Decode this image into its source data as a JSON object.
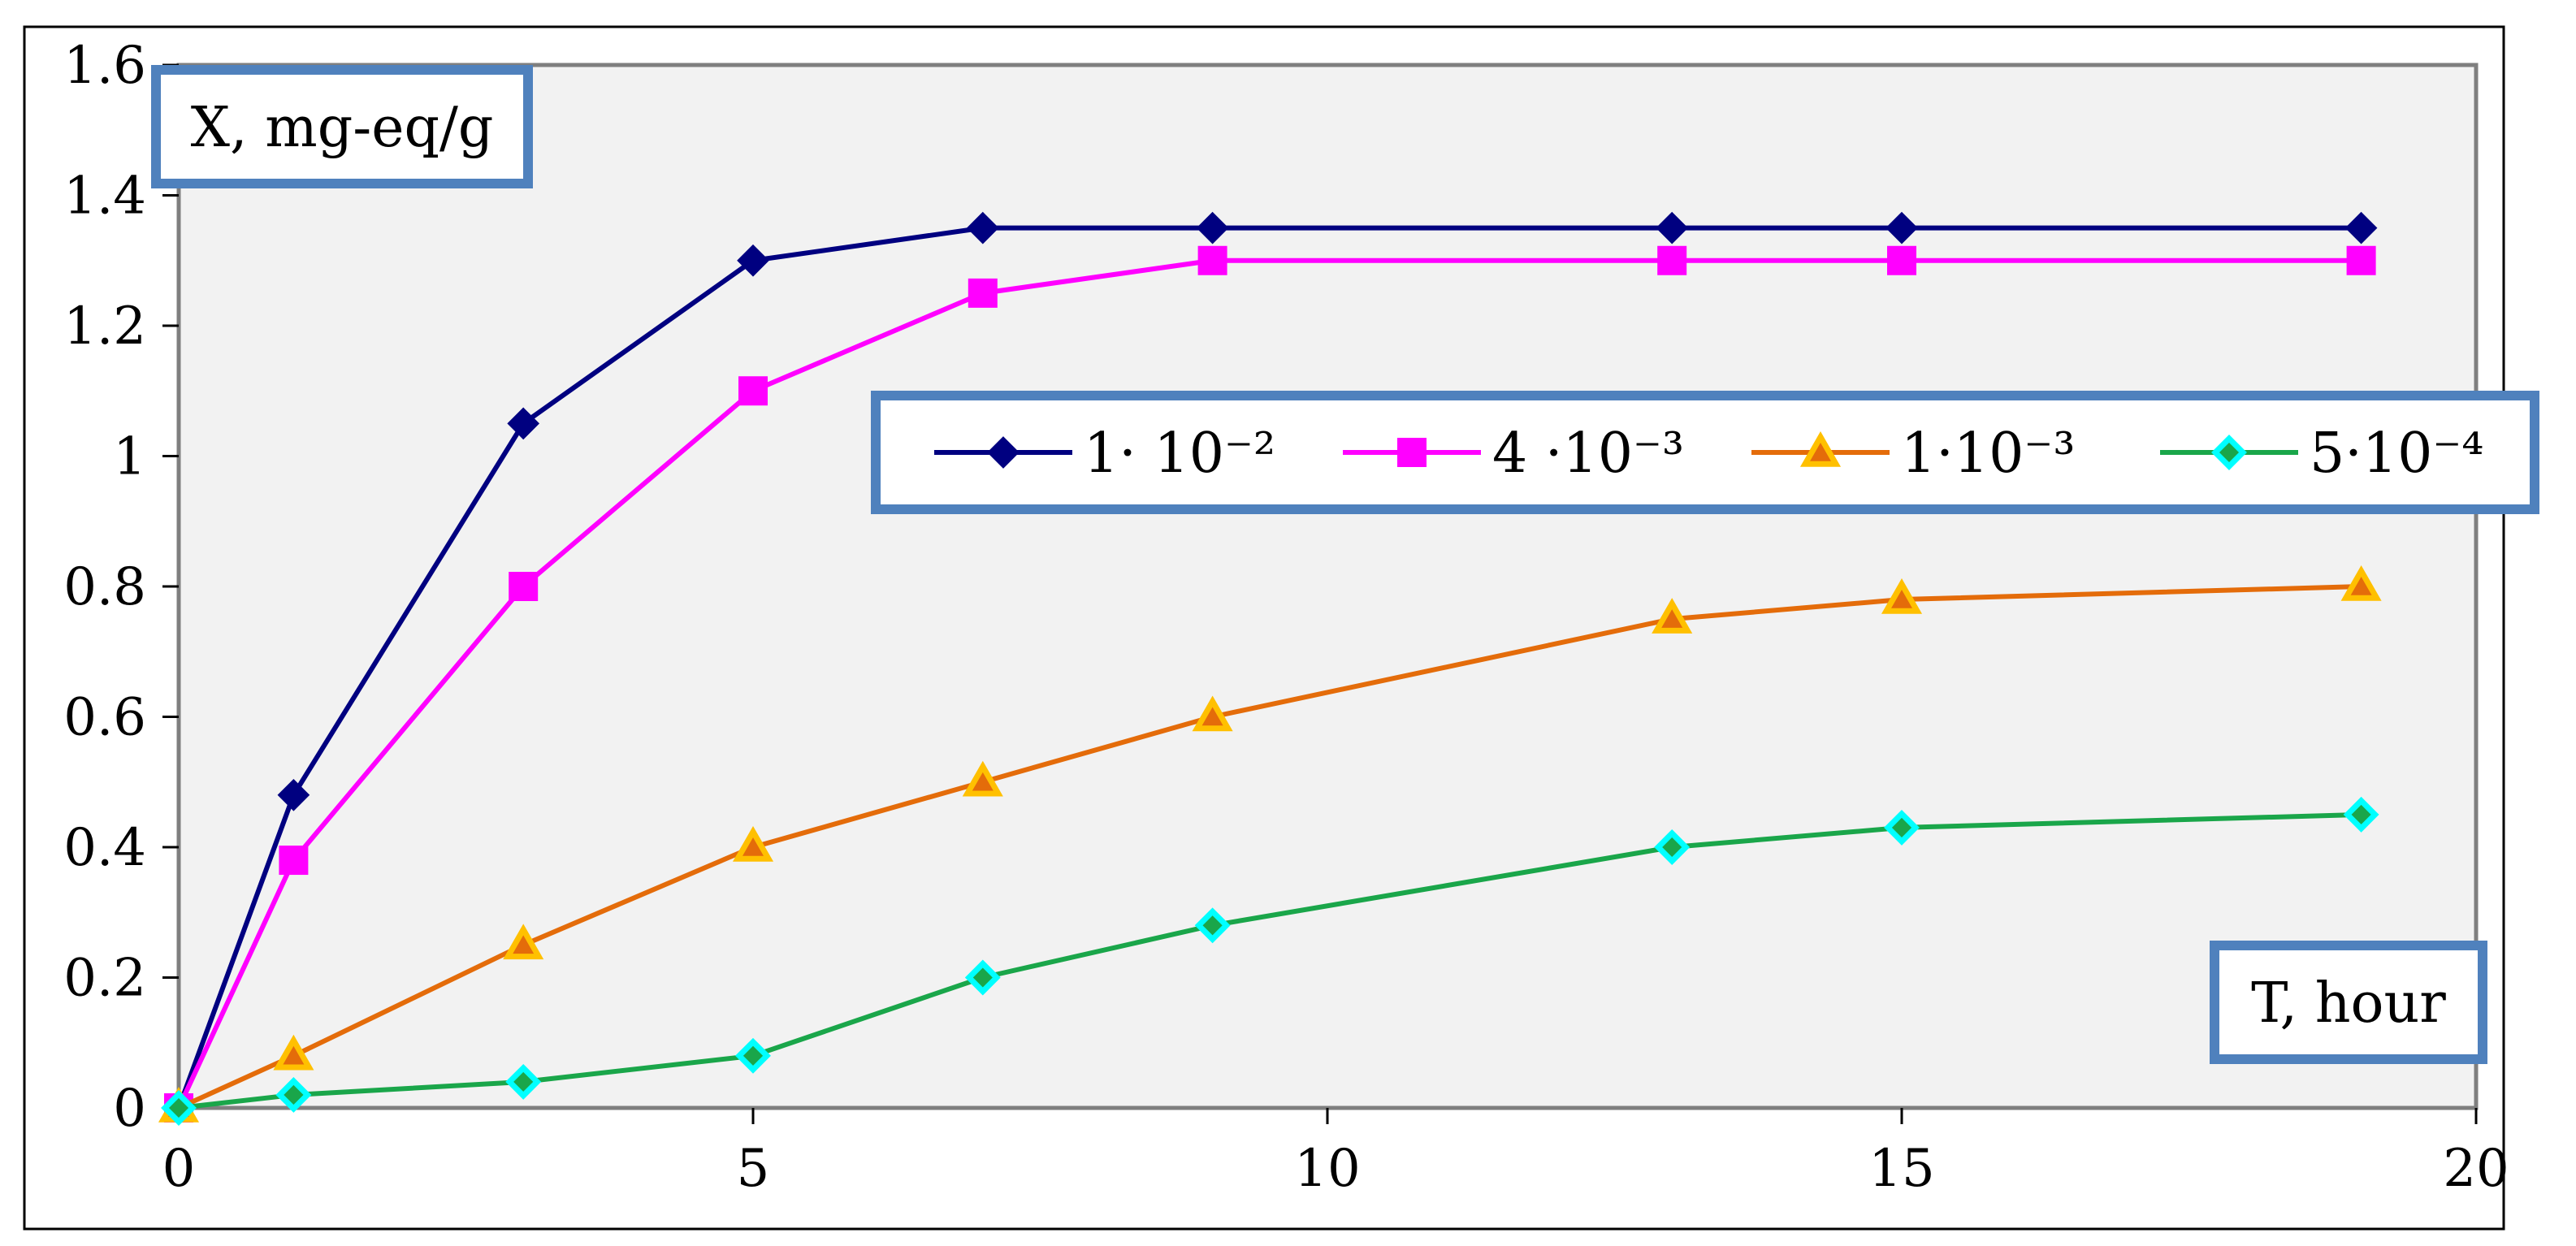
{
  "chart_data": {
    "type": "line",
    "ylabel": "X, mg-eq/g",
    "xlabel": "T, hour",
    "xlim": [
      0,
      20
    ],
    "ylim": [
      0,
      1.6
    ],
    "x_ticks": [
      0,
      5,
      10,
      15,
      20
    ],
    "x_tick_labels": [
      "0",
      "5",
      "10",
      "15",
      "20"
    ],
    "y_ticks": [
      0,
      0.2,
      0.4,
      0.6,
      0.8,
      1.0,
      1.2,
      1.4,
      1.6
    ],
    "y_tick_labels": [
      "0",
      "0.2",
      "0.4",
      "0.6",
      "0.8",
      "1",
      "1.2",
      "1.4",
      "1.6"
    ],
    "grid": false,
    "legend_position": "center-right",
    "plot_background": "#f2f2f2",
    "series": [
      {
        "name": "1· 10⁻²",
        "color": "#000080",
        "marker": "diamond",
        "marker_fill": "#000080",
        "x": [
          0,
          1,
          3,
          5,
          7,
          9,
          13,
          15,
          19
        ],
        "y": [
          0,
          0.48,
          1.05,
          1.3,
          1.35,
          1.35,
          1.35,
          1.35,
          1.35
        ]
      },
      {
        "name": "4 ·10⁻³",
        "color": "#ff00ff",
        "marker": "square",
        "marker_fill": "#ff00ff",
        "x": [
          0,
          1,
          3,
          5,
          7,
          9,
          13,
          15,
          19
        ],
        "y": [
          0,
          0.38,
          0.8,
          1.1,
          1.25,
          1.3,
          1.3,
          1.3,
          1.3
        ]
      },
      {
        "name": "1·10⁻³",
        "color": "#e46c0a",
        "marker": "triangle",
        "marker_fill": "#ffc000",
        "x": [
          0,
          1,
          3,
          5,
          7,
          9,
          13,
          15,
          19
        ],
        "y": [
          0,
          0.08,
          0.25,
          0.4,
          0.5,
          0.6,
          0.75,
          0.78,
          0.8
        ]
      },
      {
        "name": "5·10⁻⁴",
        "color": "#1aa64a",
        "marker": "diamond",
        "marker_fill": "#00ffff",
        "x": [
          0,
          1,
          3,
          5,
          7,
          9,
          13,
          15,
          19
        ],
        "y": [
          0,
          0.02,
          0.04,
          0.08,
          0.2,
          0.28,
          0.4,
          0.43,
          0.45
        ]
      }
    ]
  }
}
